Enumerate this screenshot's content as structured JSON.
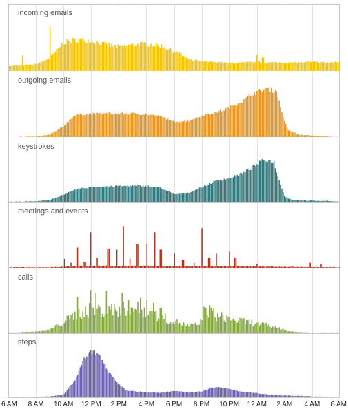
{
  "chart_data": {
    "type": "bar",
    "x_axis": {
      "ticks": [
        "6 AM",
        "8 AM",
        "10 AM",
        "12 PM",
        "2 PM",
        "4 PM",
        "6 PM",
        "8 PM",
        "10 PM",
        "12 AM",
        "2 AM",
        "4 AM",
        "6 AM"
      ],
      "range_hours": [
        6,
        30
      ],
      "grid": true
    },
    "panels": [
      {
        "id": "incoming",
        "title": "incoming emails",
        "color": "#f2c40f",
        "shape": [
          [
            6,
            0.1
          ],
          [
            7,
            0.1
          ],
          [
            8,
            0.13
          ],
          [
            9,
            0.25
          ],
          [
            10,
            0.55
          ],
          [
            11,
            0.6
          ],
          [
            12,
            0.58
          ],
          [
            13,
            0.5
          ],
          [
            14,
            0.46
          ],
          [
            15,
            0.5
          ],
          [
            16,
            0.52
          ],
          [
            17,
            0.48
          ],
          [
            18,
            0.38
          ],
          [
            19,
            0.22
          ],
          [
            20,
            0.18
          ],
          [
            21,
            0.17
          ],
          [
            22,
            0.15
          ],
          [
            23,
            0.16
          ],
          [
            24,
            0.17
          ],
          [
            25,
            0.16
          ],
          [
            26,
            0.16
          ],
          [
            27,
            0.16
          ],
          [
            28,
            0.17
          ],
          [
            29,
            0.16
          ],
          [
            30,
            0.17
          ]
        ],
        "spikes": [
          [
            9.0,
            0.85
          ],
          [
            10.0,
            0.45
          ],
          [
            7.0,
            0.3
          ],
          [
            24.0,
            0.3
          ],
          [
            24.4,
            0.26
          ]
        ],
        "noise": 0.1
      },
      {
        "id": "outgoing",
        "title": "outgoing emails",
        "color": "#e3982c",
        "shape": [
          [
            6,
            0
          ],
          [
            8,
            0.01
          ],
          [
            9,
            0.05
          ],
          [
            10,
            0.22
          ],
          [
            10.7,
            0.42
          ],
          [
            11.5,
            0.45
          ],
          [
            13,
            0.46
          ],
          [
            15,
            0.46
          ],
          [
            16,
            0.45
          ],
          [
            17,
            0.4
          ],
          [
            18,
            0.3
          ],
          [
            19,
            0.32
          ],
          [
            20,
            0.42
          ],
          [
            21,
            0.48
          ],
          [
            22,
            0.58
          ],
          [
            23,
            0.72
          ],
          [
            23.6,
            0.85
          ],
          [
            24.6,
            0.95
          ],
          [
            25.4,
            0.9
          ],
          [
            25.8,
            0.45
          ],
          [
            26.2,
            0.14
          ],
          [
            27,
            0.05
          ],
          [
            28,
            0.03
          ],
          [
            29,
            0.01
          ],
          [
            30,
            0
          ]
        ],
        "spikes": [],
        "noise": 0.05
      },
      {
        "id": "keystrokes",
        "title": "keystrokes",
        "color": "#37797d",
        "shape": [
          [
            6,
            0
          ],
          [
            8,
            0.01
          ],
          [
            9,
            0.04
          ],
          [
            10,
            0.15
          ],
          [
            11,
            0.26
          ],
          [
            12,
            0.3
          ],
          [
            14,
            0.32
          ],
          [
            16,
            0.32
          ],
          [
            17,
            0.28
          ],
          [
            18,
            0.15
          ],
          [
            19,
            0.18
          ],
          [
            20,
            0.3
          ],
          [
            21,
            0.42
          ],
          [
            22,
            0.48
          ],
          [
            23,
            0.58
          ],
          [
            23.8,
            0.72
          ],
          [
            24.5,
            0.85
          ],
          [
            25.2,
            0.8
          ],
          [
            25.6,
            0.4
          ],
          [
            26.0,
            0.1
          ],
          [
            26.5,
            0.04
          ],
          [
            27,
            0.03
          ],
          [
            28,
            0.02
          ],
          [
            29,
            0.02
          ],
          [
            30,
            0
          ]
        ],
        "spikes": [],
        "noise": 0.05
      },
      {
        "id": "meetings",
        "title": "meetings and events",
        "color": "#b5321d",
        "shape": [
          [
            6,
            0.01
          ],
          [
            9,
            0.01
          ],
          [
            10,
            0.02
          ],
          [
            11,
            0.04
          ],
          [
            16,
            0.04
          ],
          [
            20,
            0.03
          ],
          [
            23,
            0.03
          ],
          [
            26,
            0.02
          ],
          [
            30,
            0.01
          ]
        ],
        "spikes": [
          [
            10.0,
            0.18
          ],
          [
            10.5,
            0.1
          ],
          [
            11.0,
            0.4
          ],
          [
            11.5,
            0.12
          ],
          [
            11.9,
            0.7
          ],
          [
            12.4,
            0.2
          ],
          [
            13.2,
            0.38
          ],
          [
            13.8,
            0.36
          ],
          [
            14.3,
            0.82
          ],
          [
            14.8,
            0.18
          ],
          [
            15.3,
            0.46
          ],
          [
            16.0,
            0.46
          ],
          [
            16.6,
            0.7
          ],
          [
            17.0,
            0.36
          ],
          [
            18.0,
            0.28
          ],
          [
            18.6,
            0.16
          ],
          [
            19.4,
            0.1
          ],
          [
            20.0,
            0.78
          ],
          [
            20.5,
            0.2
          ],
          [
            21.0,
            0.28
          ],
          [
            22.0,
            0.32
          ],
          [
            22.4,
            0.2
          ],
          [
            24.0,
            0.08
          ],
          [
            27.8,
            0.1
          ],
          [
            28.6,
            0.08
          ]
        ],
        "noise": 0.02
      },
      {
        "id": "calls",
        "title": "calls",
        "color": "#86a945",
        "shape": [
          [
            6,
            0
          ],
          [
            8,
            0.02
          ],
          [
            9,
            0.06
          ],
          [
            10,
            0.22
          ],
          [
            11,
            0.38
          ],
          [
            12,
            0.46
          ],
          [
            13,
            0.44
          ],
          [
            14,
            0.46
          ],
          [
            15,
            0.48
          ],
          [
            16,
            0.44
          ],
          [
            17,
            0.32
          ],
          [
            18,
            0.22
          ],
          [
            19,
            0.14
          ],
          [
            19.8,
            0.16
          ],
          [
            20.2,
            0.5
          ],
          [
            21,
            0.34
          ],
          [
            22,
            0.28
          ],
          [
            23,
            0.22
          ],
          [
            24,
            0.18
          ],
          [
            25,
            0.12
          ],
          [
            26,
            0.06
          ],
          [
            26.5,
            0.02
          ],
          [
            27,
            0.01
          ],
          [
            28,
            0
          ],
          [
            30,
            0
          ]
        ],
        "spikes": [
          [
            11.0,
            0.72
          ],
          [
            11.9,
            0.86
          ],
          [
            12.3,
            0.8
          ],
          [
            13.1,
            0.84
          ],
          [
            13.6,
            0.58
          ],
          [
            14.2,
            0.8
          ],
          [
            14.7,
            0.66
          ],
          [
            15.5,
            0.7
          ],
          [
            16.0,
            0.66
          ],
          [
            16.5,
            0.6
          ],
          [
            17.0,
            0.5
          ]
        ],
        "noise": 0.35
      },
      {
        "id": "steps",
        "title": "steps",
        "color": "#6d64ae",
        "shape": [
          [
            6,
            0
          ],
          [
            8,
            0.01
          ],
          [
            9,
            0.02
          ],
          [
            10,
            0.06
          ],
          [
            10.8,
            0.35
          ],
          [
            11.5,
            0.8
          ],
          [
            12.1,
            0.94
          ],
          [
            12.6,
            0.82
          ],
          [
            13.2,
            0.55
          ],
          [
            13.8,
            0.3
          ],
          [
            14.5,
            0.14
          ],
          [
            16,
            0.1
          ],
          [
            17,
            0.09
          ],
          [
            18,
            0.13
          ],
          [
            19,
            0.1
          ],
          [
            20,
            0.12
          ],
          [
            20.6,
            0.19
          ],
          [
            21.2,
            0.21
          ],
          [
            22,
            0.16
          ],
          [
            23,
            0.11
          ],
          [
            24,
            0.08
          ],
          [
            25,
            0.05
          ],
          [
            27,
            0.03
          ],
          [
            28,
            0.02
          ],
          [
            29,
            0.01
          ],
          [
            30,
            0
          ]
        ],
        "spikes": [],
        "noise": 0.05
      }
    ]
  }
}
